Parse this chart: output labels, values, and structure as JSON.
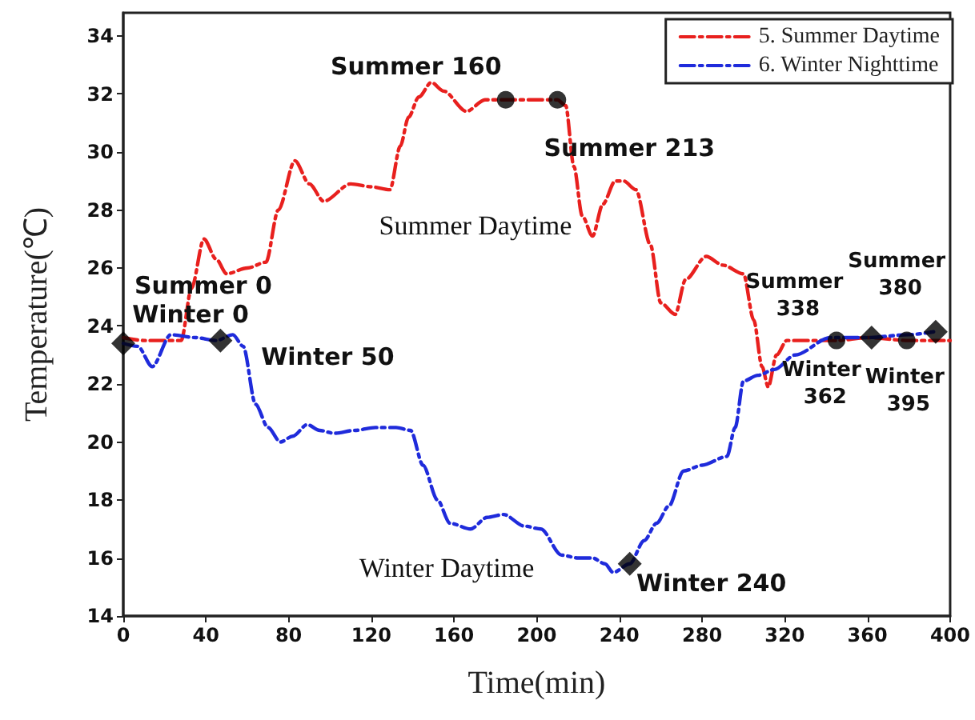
{
  "chart_data": {
    "type": "line",
    "xlabel": "Time(min)",
    "ylabel": "Temperature(℃)",
    "xlim": [
      0,
      400
    ],
    "xticks": [
      0,
      40,
      80,
      120,
      160,
      200,
      240,
      280,
      320,
      360,
      400
    ],
    "ylim": [
      14,
      34.8
    ],
    "yticks": [
      14,
      16,
      18,
      20,
      22,
      24,
      26,
      28,
      30,
      32,
      34
    ],
    "legend": "top right",
    "line_style": "dashed",
    "marker": "none",
    "series": [
      {
        "name": "5. Summer Daytime",
        "color": "#e8201e",
        "x": [
          0,
          10,
          20,
          28,
          33,
          39,
          45,
          50,
          60,
          69,
          75,
          83,
          90,
          97,
          110,
          120,
          129,
          134,
          138,
          143,
          149,
          155,
          166,
          175,
          185,
          200,
          210,
          214,
          218,
          222,
          227,
          232,
          238,
          242,
          248,
          255,
          260,
          267,
          272,
          282,
          290,
          300,
          305,
          309,
          312,
          316,
          321,
          327,
          335,
          345,
          360,
          380,
          400
        ],
        "values": [
          23.6,
          23.5,
          23.5,
          23.5,
          25.3,
          27.0,
          26.3,
          25.8,
          26.0,
          26.2,
          28.0,
          29.7,
          28.9,
          28.3,
          28.9,
          28.8,
          28.7,
          30.2,
          31.2,
          31.9,
          32.4,
          32.1,
          31.4,
          31.8,
          31.8,
          31.8,
          31.8,
          31.6,
          29.5,
          27.8,
          27.1,
          28.2,
          29.0,
          29.0,
          28.7,
          26.8,
          24.8,
          24.4,
          25.6,
          26.4,
          26.1,
          25.8,
          24.2,
          22.6,
          21.9,
          23.0,
          23.5,
          23.5,
          23.5,
          23.5,
          23.6,
          23.5,
          23.5
        ]
      },
      {
        "name": "6. Winter Nighttime",
        "color": "#1f2bdb",
        "x": [
          0,
          7,
          14,
          23,
          35,
          45,
          53,
          58,
          64,
          70,
          76,
          82,
          89,
          95,
          102,
          112,
          122,
          132,
          139,
          145,
          152,
          158,
          168,
          176,
          184,
          194,
          202,
          212,
          220,
          227,
          233,
          237,
          245,
          252,
          258,
          264,
          271,
          280,
          292,
          296,
          300,
          307,
          315,
          325,
          342,
          360,
          380,
          392
        ],
        "values": [
          23.4,
          23.3,
          22.6,
          23.7,
          23.6,
          23.5,
          23.7,
          23.3,
          21.3,
          20.5,
          20.0,
          20.2,
          20.6,
          20.4,
          20.3,
          20.4,
          20.5,
          20.5,
          20.4,
          19.2,
          18.0,
          17.2,
          17.0,
          17.4,
          17.5,
          17.1,
          17.0,
          16.1,
          16.0,
          16.0,
          15.8,
          15.5,
          15.8,
          16.6,
          17.2,
          17.8,
          19.0,
          19.2,
          19.5,
          20.5,
          22.1,
          22.3,
          22.5,
          23.0,
          23.6,
          23.6,
          23.7,
          23.8
        ]
      },
      {
        "type": "scatter",
        "marker": "circle",
        "color": "#000000",
        "x": [
          185,
          210,
          345,
          379
        ],
        "values": [
          31.8,
          31.8,
          23.5,
          23.5
        ]
      },
      {
        "type": "scatter",
        "marker": "diamond",
        "color": "#000000",
        "x": [
          0,
          47,
          245,
          362,
          393
        ],
        "values": [
          23.4,
          23.5,
          15.8,
          23.6,
          23.8
        ]
      }
    ],
    "annotations": [
      {
        "text": "Summer 0",
        "x": 0,
        "y": 23.4
      },
      {
        "text": "Winter 0",
        "x": 0,
        "y": 23.4
      },
      {
        "text": "Winter 50",
        "x": 47,
        "y": 23.5
      },
      {
        "text": "Summer 160",
        "x": 185,
        "y": 31.8
      },
      {
        "text": "Summer 213",
        "x": 210,
        "y": 31.8
      },
      {
        "text": "Winter 240",
        "x": 245,
        "y": 15.8
      },
      {
        "text": "Summer 338",
        "x": 345,
        "y": 23.5
      },
      {
        "text": "Summer 380",
        "x": 379,
        "y": 23.5
      },
      {
        "text": "Winter 362",
        "x": 362,
        "y": 23.6
      },
      {
        "text": "Winter 395",
        "x": 393,
        "y": 23.8
      },
      "Summer Daytime",
      "Winter Daytime"
    ]
  }
}
